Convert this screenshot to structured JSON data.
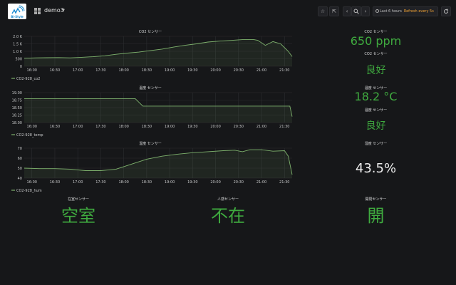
{
  "header": {
    "logo_text": "Bi-Style",
    "dashboard_title": "demo3",
    "time_range": "Last 6 hours",
    "refresh_label": "Refresh every 5s",
    "icons": [
      "grid-icon",
      "star-icon",
      "share-icon",
      "chevron-left-icon",
      "zoom-out-icon",
      "chevron-right-icon",
      "clock-icon",
      "refresh-icon"
    ]
  },
  "panels": {
    "co2_chart_title": "CO2 センサー",
    "temp_chart_title": "温度 センサー",
    "hum_chart_title": "湿度 センサー",
    "co2_stat_title": "CO2 センサー",
    "co2_stat_value": "650 ppm",
    "co2_status_title": "CO2 センサー",
    "co2_status_value": "良好",
    "temp_stat_title": "温度 センサー",
    "temp_stat_value": "18.2 °C",
    "temp_status_title": "温度 センサー",
    "temp_status_value": "良好",
    "hum_stat_title": "湿度 センサー",
    "hum_stat_value": "43.5%",
    "presence_title": "在室センサー",
    "presence_value": "空室",
    "motion_title": "人感センサー",
    "motion_value": "不在",
    "door_title": "開閉センサー",
    "door_value": "開"
  },
  "colors": {
    "series": "#7eb26d",
    "stat_green": "#3fab3f",
    "accent_orange": "#f0a234"
  },
  "chart_data": [
    {
      "type": "area",
      "title": "CO2 センサー",
      "x_ticks": [
        "16:00",
        "16:30",
        "17:00",
        "17:30",
        "18:00",
        "18:30",
        "19:00",
        "19:30",
        "20:00",
        "20:30",
        "21:00",
        "21:30"
      ],
      "y_ticks": [
        "0",
        "500",
        "1.0 K",
        "1.5 K",
        "2.0 K"
      ],
      "ylim": [
        0,
        2000
      ],
      "xlim": [
        "15:50",
        "21:40"
      ],
      "legend": [
        "CO2-928_co2"
      ],
      "series": [
        {
          "name": "CO2-928_co2",
          "x": [
            "15:50",
            "16:05",
            "16:20",
            "16:35",
            "16:50",
            "17:05",
            "17:20",
            "17:35",
            "17:50",
            "18:05",
            "18:20",
            "18:35",
            "18:50",
            "19:05",
            "19:20",
            "19:35",
            "19:50",
            "20:05",
            "20:20",
            "20:35",
            "20:50",
            "20:55",
            "21:05",
            "21:15",
            "21:25",
            "21:35",
            "21:40"
          ],
          "values": [
            540,
            560,
            570,
            580,
            560,
            600,
            640,
            700,
            800,
            880,
            950,
            1050,
            1150,
            1280,
            1400,
            1500,
            1620,
            1680,
            1730,
            1780,
            1780,
            1740,
            1400,
            1650,
            1500,
            1000,
            650
          ]
        }
      ]
    },
    {
      "type": "area",
      "title": "温度 センサー",
      "x_ticks": [
        "16:00",
        "16:30",
        "17:00",
        "17:30",
        "18:00",
        "18:30",
        "19:00",
        "19:30",
        "20:00",
        "20:30",
        "21:00",
        "21:30"
      ],
      "y_ticks": [
        "18.00",
        "18.25",
        "18.50",
        "18.75",
        "19.00"
      ],
      "ylim": [
        18.0,
        19.0
      ],
      "xlim": [
        "15:50",
        "21:40"
      ],
      "legend": [
        "CO2-928_temp"
      ],
      "series": [
        {
          "name": "CO2-928_temp",
          "x": [
            "15:50",
            "18:15",
            "18:25",
            "21:30",
            "21:37",
            "21:40"
          ],
          "values": [
            18.8,
            18.8,
            18.55,
            18.55,
            18.55,
            18.2
          ]
        }
      ]
    },
    {
      "type": "area",
      "title": "湿度 センサー",
      "x_ticks": [
        "16:00",
        "16:30",
        "17:00",
        "17:30",
        "18:00",
        "18:30",
        "19:00",
        "19:30",
        "20:00",
        "20:30",
        "21:00",
        "21:30"
      ],
      "y_ticks": [
        "40",
        "50",
        "60",
        "70"
      ],
      "ylim": [
        40,
        70
      ],
      "xlim": [
        "15:50",
        "21:40"
      ],
      "legend": [
        "CO2-928_hum"
      ],
      "series": [
        {
          "name": "CO2-928_hum",
          "x": [
            "15:50",
            "16:10",
            "16:30",
            "16:50",
            "17:10",
            "17:30",
            "17:50",
            "18:10",
            "18:30",
            "18:50",
            "19:10",
            "19:30",
            "19:50",
            "20:10",
            "20:25",
            "20:35",
            "20:45",
            "21:00",
            "21:15",
            "21:30",
            "21:35",
            "21:40"
          ],
          "values": [
            50,
            49.5,
            49.5,
            49,
            47.5,
            47.5,
            49,
            54,
            59,
            62,
            64,
            65.5,
            66.5,
            67.5,
            68,
            66.5,
            68.5,
            68.5,
            67,
            67.5,
            62,
            43.5
          ]
        }
      ]
    }
  ]
}
